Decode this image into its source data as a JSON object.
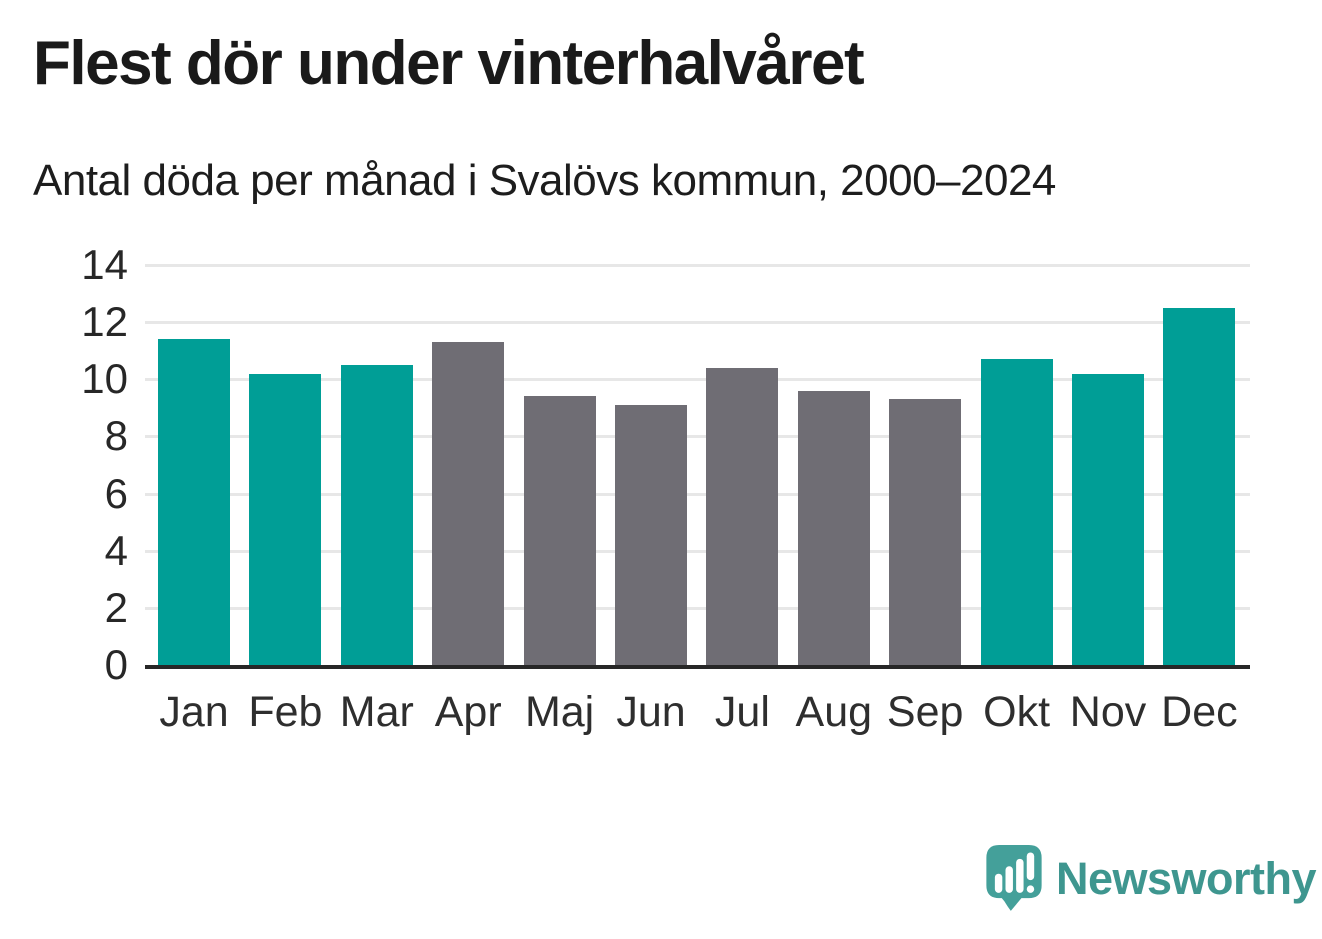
{
  "header": {
    "title": "Flest dör under vinterhalvåret",
    "subtitle": "Antal döda per månad i Svalövs kommun, 2000–2024"
  },
  "chart_data": {
    "type": "bar",
    "title": "Flest dör under vinterhalvåret",
    "subtitle": "Antal döda per månad i Svalövs kommun, 2000–2024",
    "categories": [
      "Jan",
      "Feb",
      "Mar",
      "Apr",
      "Maj",
      "Jun",
      "Jul",
      "Aug",
      "Sep",
      "Okt",
      "Nov",
      "Dec"
    ],
    "values": [
      11.4,
      10.2,
      10.5,
      11.3,
      9.4,
      9.1,
      10.4,
      9.6,
      9.3,
      10.7,
      10.2,
      12.5
    ],
    "highlighted": [
      true,
      true,
      true,
      false,
      false,
      false,
      false,
      false,
      false,
      true,
      true,
      true
    ],
    "colors": {
      "highlight": "#009E96",
      "base": "#6F6D74",
      "gridline": "#E7E7E7",
      "axis": "#272727"
    },
    "xlabel": "",
    "ylabel": "",
    "ylim": [
      0,
      14
    ],
    "yticks": [
      0,
      2,
      4,
      6,
      8,
      10,
      12,
      14
    ],
    "grid": true,
    "legend_position": "none"
  },
  "footer": {
    "brand": "Newsworthy",
    "brand_color": "#3E968F",
    "logo_mark_color": "#44A09A"
  }
}
